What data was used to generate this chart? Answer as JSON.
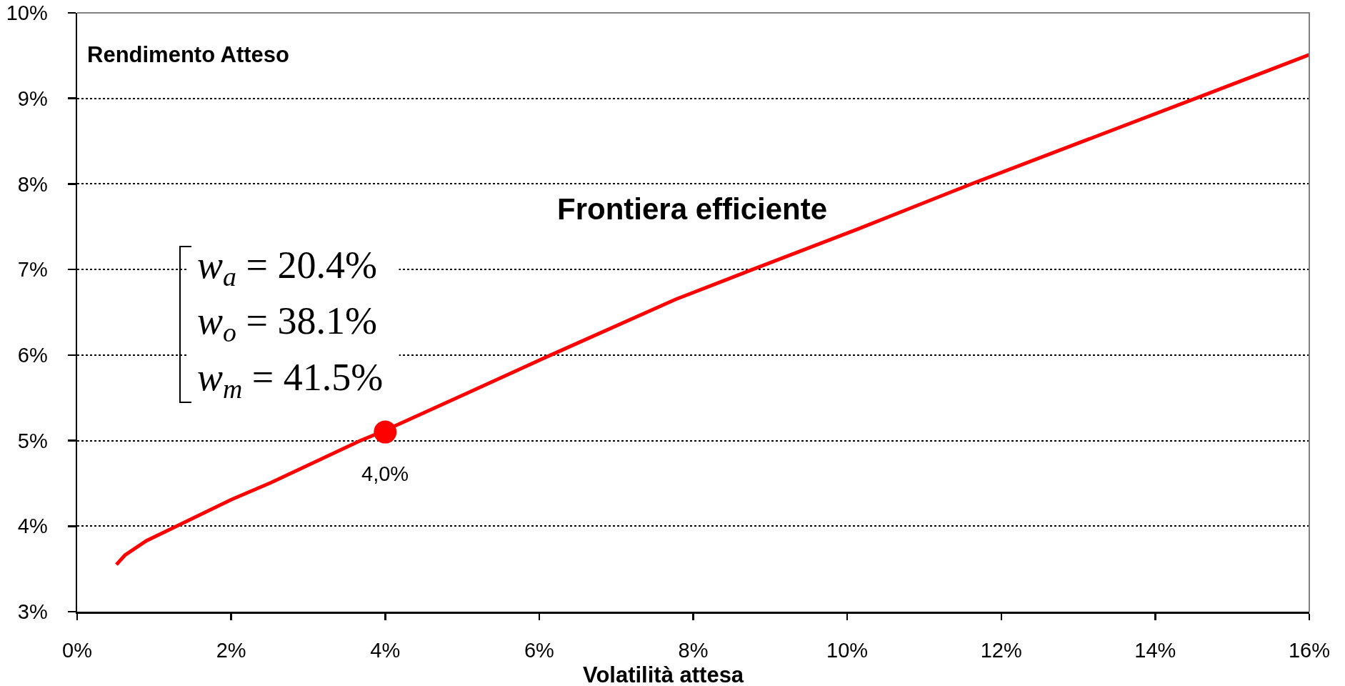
{
  "chart_data": {
    "type": "line",
    "xlabel": "Volatilità attesa",
    "ylabel": "Rendimento Atteso",
    "annotations": [
      "w$_{a}$ = 20.4%",
      "w$_{o}$ = 38.1%",
      "w$_{m}$ = 41.5%",
      {
        "text": "4,0%",
        "x": 4.0,
        "y": 5.1
      }
    ],
    "series": [
      {
        "name": "Frontiera efficiente",
        "color": "#ff0000",
        "x": [
          0.51,
          0.62,
          0.9,
          1.36,
          2.0,
          2.52,
          3.68,
          4.0,
          5.15,
          6.15,
          7.77,
          8.77,
          10.13,
          11.67,
          14.58,
          16.0
        ],
        "values": [
          3.55,
          3.66,
          3.83,
          4.03,
          4.31,
          4.51,
          5.0,
          5.12,
          5.59,
          6.0,
          6.65,
          7.0,
          7.47,
          8.02,
          9.02,
          9.51
        ]
      },
      {
        "type": "scatter",
        "color": "#ff0000",
        "marker": "circle",
        "x": [
          4.0
        ],
        "values": [
          5.1
        ]
      }
    ],
    "xlim": [
      0,
      16
    ],
    "xticks": [
      {
        "value": 0,
        "label": "0%"
      },
      {
        "value": 2,
        "label": "2%"
      },
      {
        "value": 4,
        "label": "4%"
      },
      {
        "value": 6,
        "label": "6%"
      },
      {
        "value": 8,
        "label": "8%"
      },
      {
        "value": 10,
        "label": "10%"
      },
      {
        "value": 12,
        "label": "12%"
      },
      {
        "value": 14,
        "label": "14%"
      },
      {
        "value": 16,
        "label": "16%"
      }
    ],
    "ylim": [
      3,
      10
    ],
    "yticks": [
      {
        "value": 3,
        "label": "3%"
      },
      {
        "value": 4,
        "label": "4%"
      },
      {
        "value": 5,
        "label": "5%"
      },
      {
        "value": 6,
        "label": "6%"
      },
      {
        "value": 7,
        "label": "7%"
      },
      {
        "value": 8,
        "label": "8%"
      },
      {
        "value": 9,
        "label": "9%"
      },
      {
        "value": 10,
        "label": "10%"
      }
    ],
    "grid": "y"
  }
}
